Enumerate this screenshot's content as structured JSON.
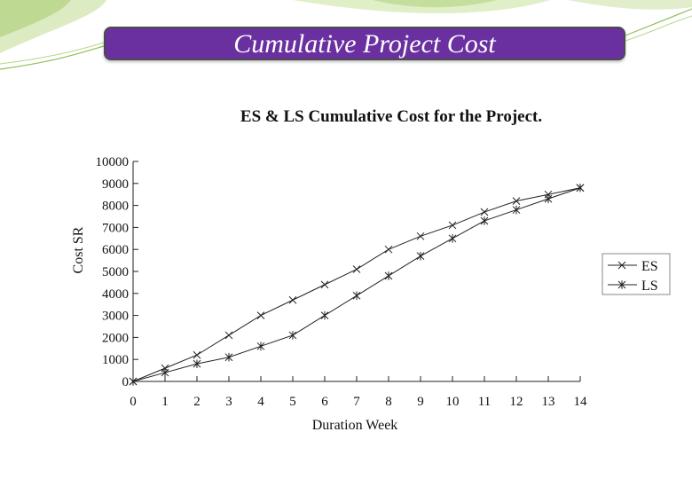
{
  "slide": {
    "title": "Cumulative Project Cost"
  },
  "colors": {
    "banner": "#6a30a0",
    "banner_border": "#4b4b4b",
    "decor_green": "#b8d88a",
    "line": "#222222"
  },
  "chart_data": {
    "type": "line",
    "title": "ES & LS Cumulative Cost for the Project.",
    "xlabel": "Duration Week",
    "ylabel": "Cost SR",
    "x": [
      0,
      1,
      2,
      3,
      4,
      5,
      6,
      7,
      8,
      9,
      10,
      11,
      12,
      13,
      14
    ],
    "xlim": [
      0,
      14
    ],
    "ylim": [
      0,
      10000
    ],
    "x_ticks": [
      "0",
      "1",
      "2",
      "3",
      "4",
      "5",
      "6",
      "7",
      "8",
      "9",
      "10",
      "11",
      "12",
      "13",
      "14"
    ],
    "y_ticks": [
      "0",
      "1000",
      "2000",
      "3000",
      "4000",
      "5000",
      "6000",
      "7000",
      "8000",
      "9000",
      "10000"
    ],
    "grid": false,
    "legend_position": "right",
    "series": [
      {
        "name": "ES",
        "marker": "x",
        "values": [
          0,
          600,
          1200,
          2100,
          3000,
          3700,
          4400,
          5100,
          6000,
          6600,
          7100,
          7700,
          8200,
          8500,
          8800
        ]
      },
      {
        "name": "LS",
        "marker": "asterisk",
        "values": [
          0,
          400,
          800,
          1100,
          1600,
          2100,
          3000,
          3900,
          4800,
          5700,
          6500,
          7300,
          7800,
          8300,
          8800
        ]
      }
    ]
  }
}
